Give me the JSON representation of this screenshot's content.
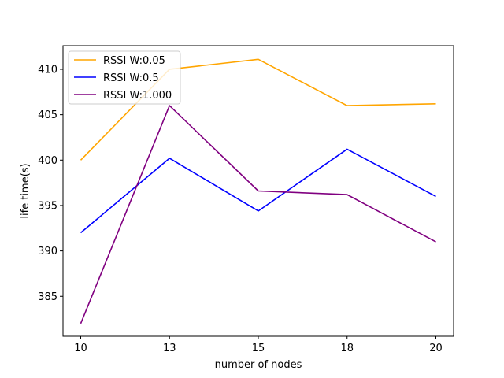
{
  "chart_data": {
    "type": "line",
    "xlabel": "number of nodes",
    "ylabel": "life time(s)",
    "categories": [
      "10",
      "13",
      "15",
      "18",
      "20"
    ],
    "ylim": [
      380.6,
      412.6
    ],
    "yticks": [
      385,
      390,
      395,
      400,
      405,
      410
    ],
    "grid": false,
    "legend_position": "top-left",
    "series": [
      {
        "name": "RSSI W:0.05",
        "color": "#ffa500",
        "values": [
          400.0,
          410.0,
          411.1,
          406.0,
          406.2
        ]
      },
      {
        "name": "RSSI W:0.5",
        "color": "#0000ff",
        "values": [
          392.0,
          400.2,
          394.4,
          401.2,
          396.0
        ]
      },
      {
        "name": "RSSI W:1.000",
        "color": "#800080",
        "values": [
          382.0,
          406.0,
          396.6,
          396.2,
          391.0
        ]
      }
    ]
  }
}
